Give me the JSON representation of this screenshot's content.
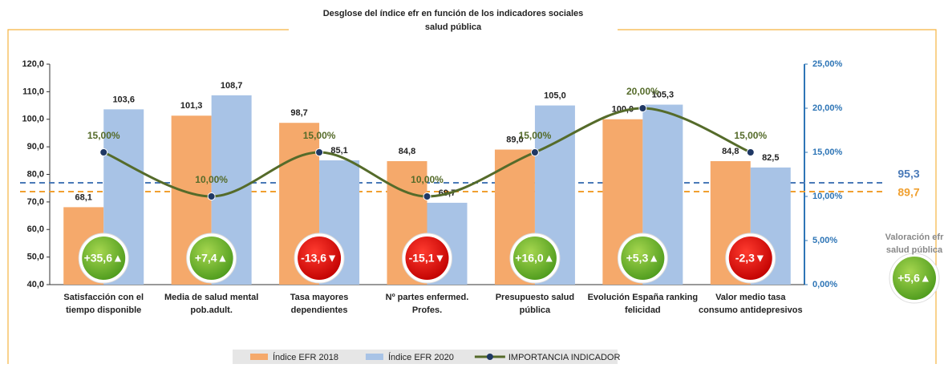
{
  "chart_data": {
    "type": "bar",
    "title": [
      "Desglose del índice efr en función de los indicadores sociales",
      "salud pública"
    ],
    "categories": [
      "Satisfacción con el\ntiempo disponible",
      "Media de salud mental\npob.adult.",
      "Tasa mayores\ndependientes",
      "Nº partes enfermed.\nProfes.",
      "Presupuesto salud\npública",
      "Evolución España ranking\nfelicidad",
      "Valor medio tasa\nconsumo antidepresivos"
    ],
    "series": [
      {
        "name": "Índice EFR 2018",
        "color": "#f5a96b",
        "type": "bar",
        "values": [
          68.1,
          101.3,
          98.7,
          84.8,
          89.0,
          100.0,
          84.8
        ],
        "value_labels": [
          "68,1",
          "101,3",
          "98,7",
          "84,8",
          "89,0",
          "100,0",
          "84,8"
        ]
      },
      {
        "name": "Índice EFR 2020",
        "color": "#a8c3e6",
        "type": "bar",
        "values": [
          103.6,
          108.7,
          85.1,
          69.7,
          105.0,
          105.3,
          82.5
        ],
        "value_labels": [
          "103,6",
          "108,7",
          "85,1",
          "69,7",
          "105,0",
          "105,3",
          "82,5"
        ]
      },
      {
        "name": "IMPORTANCIA INDICADOR",
        "color": "#556b2a",
        "type": "line",
        "axis": "y2",
        "values": [
          15,
          10,
          15,
          10,
          15,
          20,
          15
        ],
        "value_labels": [
          "15,00%",
          "10,00%",
          "15,00%",
          "10,00%",
          "15,00%",
          "20,00%",
          "15,00%"
        ]
      }
    ],
    "ylim": [
      40,
      120
    ],
    "yticks": [
      {
        "value": 40,
        "label": "40,0"
      },
      {
        "value": 50,
        "label": "50,0"
      },
      {
        "value": 60,
        "label": "60,0"
      },
      {
        "value": 70,
        "label": "70,0"
      },
      {
        "value": 80,
        "label": "80,0"
      },
      {
        "value": 90,
        "label": "90,0"
      },
      {
        "value": 100,
        "label": "100,0"
      },
      {
        "value": 110,
        "label": "110,0"
      },
      {
        "value": 120,
        "label": "120,0"
      }
    ],
    "y2lim": [
      0,
      25
    ],
    "y2ticks": [
      {
        "value": 0,
        "label": "0,00%"
      },
      {
        "value": 5,
        "label": "5,00%"
      },
      {
        "value": 10,
        "label": "10,00%"
      },
      {
        "value": 15,
        "label": "15,00%"
      },
      {
        "value": 20,
        "label": "20,00%"
      },
      {
        "value": 25,
        "label": "25,00%"
      }
    ],
    "badges": [
      {
        "label": "+35,6▲",
        "color": "green"
      },
      {
        "label": "+7,4▲",
        "color": "green"
      },
      {
        "label": "-13,6▼",
        "color": "red"
      },
      {
        "label": "-15,1▼",
        "color": "red"
      },
      {
        "label": "+16,0▲",
        "color": "green"
      },
      {
        "label": "+5,3▲",
        "color": "green"
      },
      {
        "label": "-2,3▼",
        "color": "red"
      }
    ],
    "reference_labels": [
      {
        "label": "95,3",
        "color": "#4a7ab8"
      },
      {
        "label": "89,7",
        "color": "#f0a030"
      }
    ],
    "side_label": [
      "Valoración efr",
      "salud pública"
    ],
    "total_badge": {
      "label": "+5,6▲",
      "color": "green"
    }
  }
}
